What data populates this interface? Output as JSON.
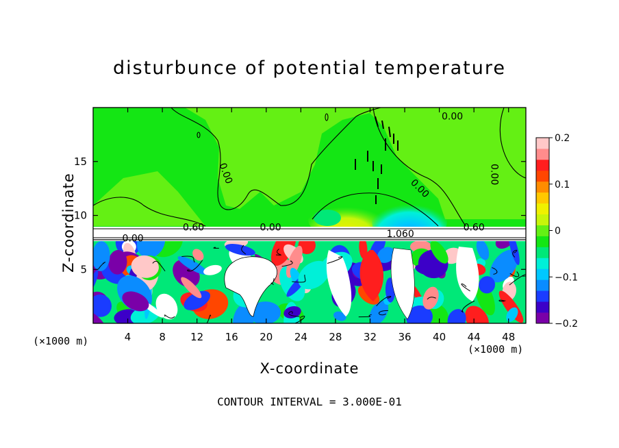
{
  "chart_data": {
    "type": "heatmap",
    "title": "disturbunce of potential temperature",
    "xlabel": "X-coordinate",
    "ylabel": "Z-coordinate",
    "x_unit": "(×1000 m)",
    "y_unit": "(×1000 m)",
    "x_range": [
      0,
      50
    ],
    "y_range": [
      0,
      20
    ],
    "x_ticks": [
      4,
      8,
      12,
      16,
      20,
      24,
      28,
      32,
      36,
      40,
      44,
      48
    ],
    "y_ticks": [
      5,
      10,
      15
    ],
    "colorbar": {
      "range": [
        -0.2,
        0.2
      ],
      "ticks": [
        0.2,
        0.1,
        0,
        -0.1,
        -0.2
      ],
      "tick_labels": [
        "0.2",
        "0.1",
        "0",
        "−0.1",
        "−0.2"
      ],
      "colors": [
        "#7a00a8",
        "#3c00c8",
        "#1a3cff",
        "#0a8cff",
        "#00c8ff",
        "#00f0d8",
        "#00e878",
        "#14e614",
        "#64f014",
        "#c8f50a",
        "#f0f000",
        "#ffc800",
        "#ff8c00",
        "#ff4600",
        "#ff1e1e",
        "#ff8c8c",
        "#ffc8c8"
      ]
    },
    "contour_labels": [
      {
        "text": "0.00",
        "x": 41.5,
        "y": 18.9
      },
      {
        "text": "0.00",
        "x": 15.0,
        "y": 13.8,
        "rotate": 70
      },
      {
        "text": "0.00",
        "x": 46.0,
        "y": 13.8,
        "rotate": 90
      },
      {
        "text": "0.00",
        "x": 37.5,
        "y": 12.3,
        "rotate": 45
      },
      {
        "text": "0.60",
        "x": 11.6,
        "y": 8.6
      },
      {
        "text": "0.60",
        "x": 44.0,
        "y": 8.6
      },
      {
        "text": "0.00",
        "x": 20.5,
        "y": 8.6
      },
      {
        "text": "0.00",
        "x": 4.6,
        "y": 7.6
      },
      {
        "text": "1.060",
        "x": 35.5,
        "y": 8.0
      }
    ],
    "contour_interval_note": "CONTOUR INTERVAL = 3.000E-01"
  }
}
